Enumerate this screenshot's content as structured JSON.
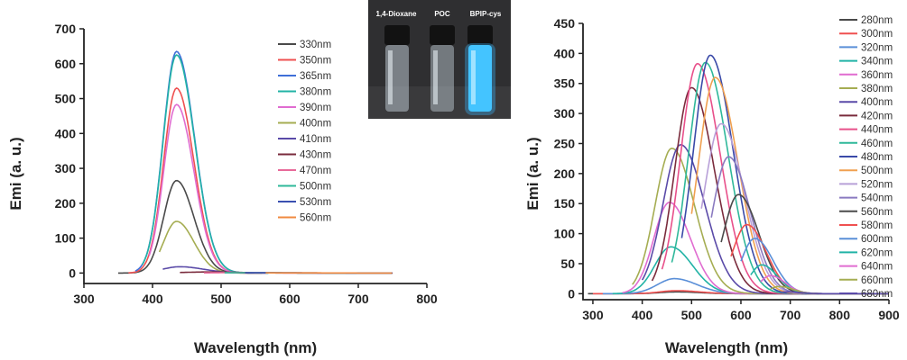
{
  "chart_data": [
    {
      "type": "line",
      "title": "",
      "xlabel": "Wavelength (nm)",
      "ylabel": "Emi (a. u.)",
      "xlim": [
        300,
        800
      ],
      "ylim": [
        -30,
        700
      ],
      "xticks": [
        300,
        400,
        500,
        600,
        700,
        800
      ],
      "yticks": [
        0,
        100,
        200,
        300,
        400,
        500,
        600,
        700
      ],
      "legend_position": "right",
      "series": [
        {
          "name": "330nm",
          "color": "#4a4a4a",
          "start": 350,
          "end": 560,
          "peak_x": 435,
          "peak_y": 265,
          "width": 22
        },
        {
          "name": "350nm",
          "color": "#ef5050",
          "start": 365,
          "end": 565,
          "peak_x": 435,
          "peak_y": 530,
          "width": 22
        },
        {
          "name": "365nm",
          "color": "#3f6fd8",
          "start": 375,
          "end": 570,
          "peak_x": 435,
          "peak_y": 635,
          "width": 23
        },
        {
          "name": "380nm",
          "color": "#22b3a6",
          "start": 385,
          "end": 570,
          "peak_x": 435,
          "peak_y": 625,
          "width": 23
        },
        {
          "name": "390nm",
          "color": "#e06cd0",
          "start": 395,
          "end": 565,
          "peak_x": 435,
          "peak_y": 483,
          "width": 22
        },
        {
          "name": "400nm",
          "color": "#a5ad52",
          "start": 410,
          "end": 560,
          "peak_x": 435,
          "peak_y": 148,
          "width": 22
        },
        {
          "name": "410nm",
          "color": "#5a4aa8",
          "start": 415,
          "end": 560,
          "peak_x": 440,
          "peak_y": 18,
          "width": 30
        },
        {
          "name": "430nm",
          "color": "#7a2b3c",
          "start": 440,
          "end": 750,
          "peak_x": 480,
          "peak_y": 3,
          "width": 40
        },
        {
          "name": "470nm",
          "color": "#e86a9a",
          "start": 475,
          "end": 750,
          "peak_x": 520,
          "peak_y": 1,
          "width": 40
        },
        {
          "name": "500nm",
          "color": "#2fb89a",
          "start": 505,
          "end": 750,
          "peak_x": 540,
          "peak_y": 1,
          "width": 40
        },
        {
          "name": "530nm",
          "color": "#3a50b0",
          "start": 535,
          "end": 750,
          "peak_x": 570,
          "peak_y": 1,
          "width": 40
        },
        {
          "name": "560nm",
          "color": "#f08a40",
          "start": 565,
          "end": 750,
          "peak_x": 600,
          "peak_y": 0.5,
          "width": 40
        }
      ]
    },
    {
      "type": "line",
      "title": "",
      "xlabel": "Wavelength (nm)",
      "ylabel": "Emi (a. u.)",
      "xlim": [
        280,
        900
      ],
      "ylim": [
        -10,
        450
      ],
      "xticks": [
        300,
        400,
        500,
        600,
        700,
        800,
        900
      ],
      "yticks": [
        0,
        50,
        100,
        150,
        200,
        250,
        300,
        350,
        400,
        450
      ],
      "legend_position": "right",
      "series": [
        {
          "name": "280nm",
          "color": "#4a4a4a",
          "start": 290,
          "end": 900,
          "peak_x": 470,
          "peak_y": 3,
          "width": 40
        },
        {
          "name": "300nm",
          "color": "#ef5050",
          "start": 300,
          "end": 900,
          "peak_x": 470,
          "peak_y": 5,
          "width": 40
        },
        {
          "name": "320nm",
          "color": "#5a8fd8",
          "start": 320,
          "end": 900,
          "peak_x": 465,
          "peak_y": 25,
          "width": 40
        },
        {
          "name": "340nm",
          "color": "#22b3a6",
          "start": 340,
          "end": 900,
          "peak_x": 458,
          "peak_y": 78,
          "width": 38
        },
        {
          "name": "360nm",
          "color": "#e06cd0",
          "start": 360,
          "end": 900,
          "peak_x": 455,
          "peak_y": 152,
          "width": 37
        },
        {
          "name": "380nm",
          "color": "#a5ad52",
          "start": 380,
          "end": 900,
          "peak_x": 460,
          "peak_y": 242,
          "width": 40
        },
        {
          "name": "400nm",
          "color": "#5a4aa8",
          "start": 400,
          "end": 900,
          "peak_x": 478,
          "peak_y": 248,
          "width": 42
        },
        {
          "name": "420nm",
          "color": "#7a2b3c",
          "start": 420,
          "end": 900,
          "peak_x": 500,
          "peak_y": 343,
          "width": 40
        },
        {
          "name": "440nm",
          "color": "#e8508a",
          "start": 440,
          "end": 900,
          "peak_x": 512,
          "peak_y": 383,
          "width": 40
        },
        {
          "name": "460nm",
          "color": "#2fb89a",
          "start": 460,
          "end": 900,
          "peak_x": 528,
          "peak_y": 385,
          "width": 40
        },
        {
          "name": "480nm",
          "color": "#3a4aa8",
          "start": 480,
          "end": 900,
          "peak_x": 538,
          "peak_y": 397,
          "width": 40
        },
        {
          "name": "500nm",
          "color": "#f0a050",
          "start": 500,
          "end": 900,
          "peak_x": 548,
          "peak_y": 360,
          "width": 40
        },
        {
          "name": "520nm",
          "color": "#b8a0d8",
          "start": 520,
          "end": 900,
          "peak_x": 560,
          "peak_y": 283,
          "width": 40
        },
        {
          "name": "540nm",
          "color": "#8a7ac0",
          "start": 540,
          "end": 900,
          "peak_x": 575,
          "peak_y": 228,
          "width": 38
        },
        {
          "name": "560nm",
          "color": "#4a4a4a",
          "start": 560,
          "end": 900,
          "peak_x": 595,
          "peak_y": 165,
          "width": 36
        },
        {
          "name": "580nm",
          "color": "#ef5050",
          "start": 580,
          "end": 900,
          "peak_x": 612,
          "peak_y": 115,
          "width": 34
        },
        {
          "name": "600nm",
          "color": "#5a8fd8",
          "start": 600,
          "end": 900,
          "peak_x": 628,
          "peak_y": 92,
          "width": 32
        },
        {
          "name": "620nm",
          "color": "#22b3a6",
          "start": 620,
          "end": 900,
          "peak_x": 642,
          "peak_y": 48,
          "width": 28
        },
        {
          "name": "640nm",
          "color": "#e06cd0",
          "start": 640,
          "end": 900,
          "peak_x": 660,
          "peak_y": 30,
          "width": 26
        },
        {
          "name": "660nm",
          "color": "#a5ad52",
          "start": 660,
          "end": 900,
          "peak_x": 678,
          "peak_y": 12,
          "width": 24
        },
        {
          "name": "680nm",
          "color": "#5a4aa8",
          "start": 680,
          "end": 900,
          "peak_x": 695,
          "peak_y": 3,
          "width": 24
        }
      ]
    }
  ],
  "inset": {
    "labels": [
      "1,4-Dioxane",
      "POC",
      "BPIP-cys"
    ],
    "background": "#2f2f31",
    "glow_color": "#3ab8ff"
  }
}
